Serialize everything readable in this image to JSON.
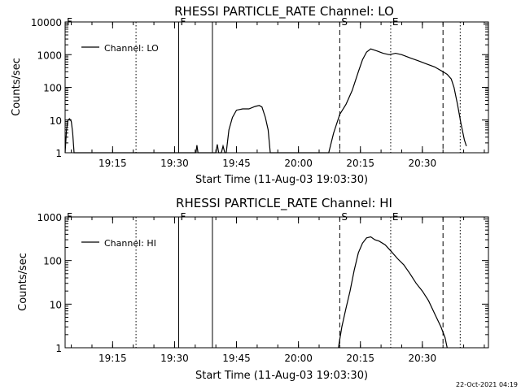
{
  "chart_data": [
    {
      "type": "line",
      "title": "RHESSI PARTICLE_RATE Channel: LO",
      "xlabel": "Start Time (11-Aug-03 19:03:30)",
      "ylabel": "Counts/sec",
      "yscale": "log",
      "ylim": [
        1,
        10000
      ],
      "xlim": [
        "19:03:30",
        "20:46:00"
      ],
      "x_ticks": [
        "19:15",
        "19:30",
        "19:45",
        "20:00",
        "20:15",
        "20:30"
      ],
      "y_ticks": [
        "1",
        "10",
        "100",
        "1000",
        "10000"
      ],
      "legend": {
        "placement": "top-left",
        "entries": [
          "Channel: LO"
        ]
      },
      "grid": false,
      "series": [
        {
          "name": "Channel: LO",
          "points": [
            [
              "19:03:30",
              1
            ],
            [
              "19:03:50",
              5
            ],
            [
              "19:04:10",
              10
            ],
            [
              "19:04:35",
              11
            ],
            [
              "19:05:00",
              9
            ],
            [
              "19:05:20",
              4
            ],
            [
              "19:05:40",
              1
            ],
            [
              "19:35:10",
              1
            ],
            [
              "19:35:25",
              1.7
            ],
            [
              "19:35:40",
              1
            ],
            [
              "19:40:00",
              1
            ],
            [
              "19:40:20",
              1.8
            ],
            [
              "19:40:40",
              1
            ],
            [
              "19:41:20",
              1
            ],
            [
              "19:41:45",
              1.6
            ],
            [
              "19:42:10",
              1
            ],
            [
              "19:42:30",
              1
            ],
            [
              "19:43:10",
              5
            ],
            [
              "19:44:00",
              12
            ],
            [
              "19:45:00",
              20
            ],
            [
              "19:46:30",
              22
            ],
            [
              "19:48:00",
              22
            ],
            [
              "19:49:30",
              26
            ],
            [
              "19:50:30",
              28
            ],
            [
              "19:51:10",
              25
            ],
            [
              "19:52:00",
              12
            ],
            [
              "19:52:40",
              5
            ],
            [
              "19:53:10",
              1
            ],
            [
              "20:07:20",
              1
            ],
            [
              "20:08:30",
              4
            ],
            [
              "20:10:00",
              15
            ],
            [
              "20:11:30",
              30
            ],
            [
              "20:13:00",
              80
            ],
            [
              "20:14:30",
              300
            ],
            [
              "20:15:30",
              700
            ],
            [
              "20:16:30",
              1200
            ],
            [
              "20:17:30",
              1500
            ],
            [
              "20:19:00",
              1300
            ],
            [
              "20:20:30",
              1100
            ],
            [
              "20:22:00",
              1000
            ],
            [
              "20:23:30",
              1100
            ],
            [
              "20:25:00",
              1000
            ],
            [
              "20:27:00",
              800
            ],
            [
              "20:29:00",
              650
            ],
            [
              "20:31:00",
              520
            ],
            [
              "20:33:00",
              420
            ],
            [
              "20:35:00",
              300
            ],
            [
              "20:36:00",
              250
            ],
            [
              "20:37:00",
              180
            ],
            [
              "20:37:40",
              100
            ],
            [
              "20:38:30",
              30
            ],
            [
              "20:39:20",
              8
            ],
            [
              "20:40:10",
              2.5
            ],
            [
              "20:40:40",
              1.6
            ]
          ]
        }
      ],
      "annotations": {
        "markers": [
          {
            "label": "F",
            "time": "19:03:30",
            "style": "solid"
          },
          {
            "label": "F",
            "time": "19:31:00",
            "style": "solid"
          },
          {
            "label": "",
            "time": "19:39:10",
            "style": "solid"
          },
          {
            "label": "S",
            "time": "20:10:00",
            "style": "dashed"
          },
          {
            "label": "E",
            "time": "20:22:20",
            "style": "dotted"
          },
          {
            "label": "",
            "time": "19:20:40",
            "style": "dotted"
          },
          {
            "label": "",
            "time": "20:35:00",
            "style": "dashed"
          },
          {
            "label": "",
            "time": "20:39:10",
            "style": "dotted"
          }
        ]
      }
    },
    {
      "type": "line",
      "title": "RHESSI PARTICLE_RATE Channel: HI",
      "xlabel": "Start Time (11-Aug-03 19:03:30)",
      "ylabel": "Counts/sec",
      "yscale": "log",
      "ylim": [
        1,
        1000
      ],
      "xlim": [
        "19:03:30",
        "20:46:00"
      ],
      "x_ticks": [
        "19:15",
        "19:30",
        "19:45",
        "20:00",
        "20:15",
        "20:30"
      ],
      "y_ticks": [
        "1",
        "10",
        "100",
        "1000"
      ],
      "legend": {
        "placement": "top-left",
        "entries": [
          "Channel: HI"
        ]
      },
      "grid": false,
      "series": [
        {
          "name": "Channel: HI",
          "points": [
            [
              "20:09:40",
              1
            ],
            [
              "20:10:30",
              3
            ],
            [
              "20:11:30",
              8
            ],
            [
              "20:12:30",
              20
            ],
            [
              "20:13:30",
              60
            ],
            [
              "20:14:30",
              150
            ],
            [
              "20:15:30",
              250
            ],
            [
              "20:16:30",
              330
            ],
            [
              "20:17:30",
              350
            ],
            [
              "20:18:30",
              300
            ],
            [
              "20:19:30",
              280
            ],
            [
              "20:21:00",
              230
            ],
            [
              "20:22:30",
              160
            ],
            [
              "20:24:00",
              110
            ],
            [
              "20:25:30",
              80
            ],
            [
              "20:27:00",
              50
            ],
            [
              "20:28:30",
              30
            ],
            [
              "20:30:00",
              20
            ],
            [
              "20:31:30",
              12
            ],
            [
              "20:33:00",
              6
            ],
            [
              "20:34:30",
              3
            ],
            [
              "20:35:30",
              1.7
            ],
            [
              "20:36:00",
              1
            ]
          ]
        }
      ],
      "annotations": {
        "markers": [
          {
            "label": "F",
            "time": "19:03:30",
            "style": "solid"
          },
          {
            "label": "F",
            "time": "19:31:00",
            "style": "solid"
          },
          {
            "label": "",
            "time": "19:39:10",
            "style": "solid"
          },
          {
            "label": "S",
            "time": "20:10:00",
            "style": "dashed"
          },
          {
            "label": "E",
            "time": "20:22:20",
            "style": "dotted"
          },
          {
            "label": "",
            "time": "19:20:40",
            "style": "dotted"
          },
          {
            "label": "",
            "time": "20:35:00",
            "style": "dashed"
          },
          {
            "label": "",
            "time": "20:39:10",
            "style": "dotted"
          }
        ]
      }
    }
  ],
  "footer": {
    "timestamp": "22-Oct-2021 04:19"
  }
}
